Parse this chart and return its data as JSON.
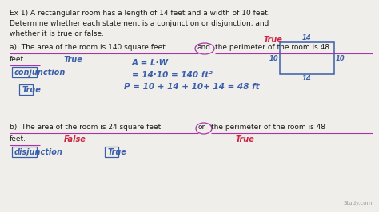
{
  "bg_color": "#f0eeea",
  "text_color": "#1a1a1a",
  "blue": "#3a5faa",
  "red": "#cc2244",
  "purple_ul": "#aa33aa",
  "watermark": "Study.com",
  "title1": "Ex 1) A rectangular room has a length of 14 feet and a width of 10 feet.",
  "title2": "Determine whether each statement is a conjunction or disjunction, and",
  "title3": "whether it is true or false.",
  "a_text1": "a)  The area of the room is 140 square feet",
  "a_and": "and",
  "a_text2": "the perimeter of the room is 48",
  "a_feet": "feet.",
  "a_true_red": "True",
  "a_true_blue": "True",
  "a_conjunction": "conjunction",
  "a_box_true": "True",
  "a_math1": "A = L·W",
  "a_math2": "= 14·10 = 140 ft²",
  "a_math3": "P = 10 + 14 + 10+ 14 = 48 ft",
  "b_text1": "b)  The area of the room is 24 square feet",
  "b_or": "or",
  "b_text2": "the perimeter of the room is 48",
  "b_feet": "feet.",
  "b_false": "False",
  "b_true_right": "True",
  "b_disjunction": "disjunction",
  "b_box_true": "True"
}
